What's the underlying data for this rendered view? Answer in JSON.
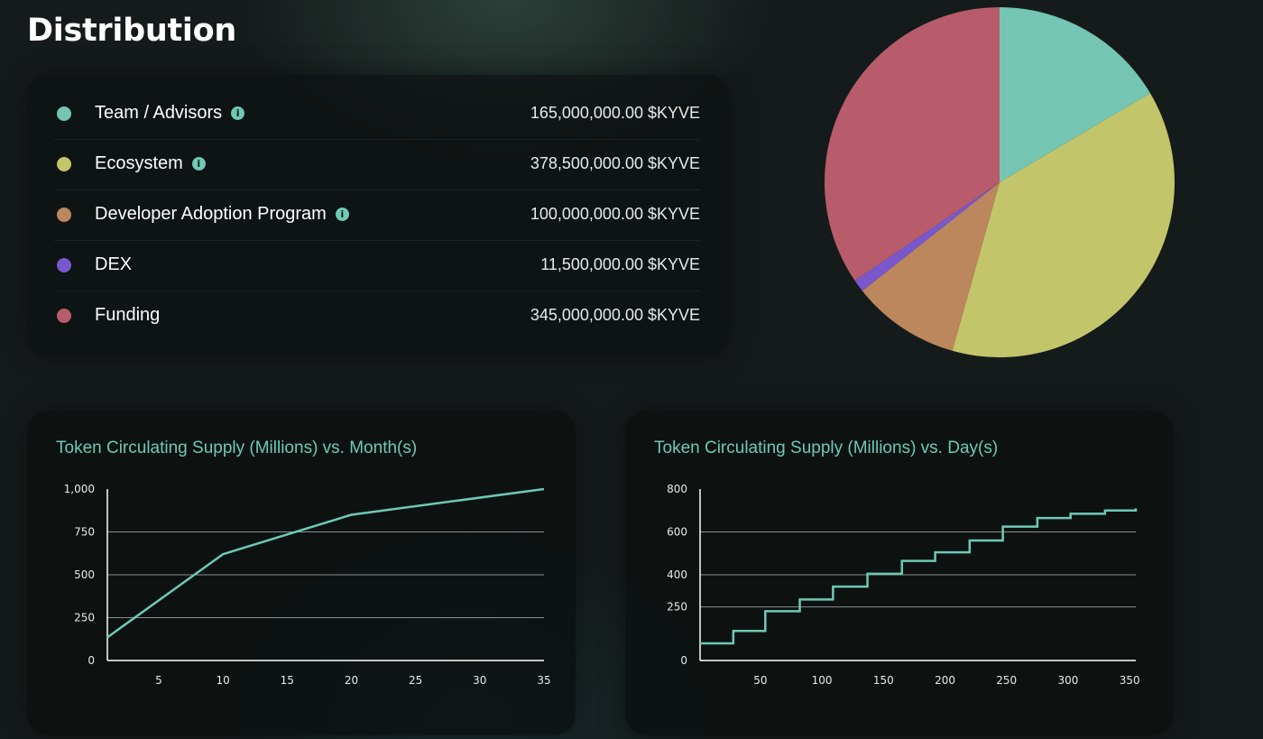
{
  "page": {
    "title": "Distribution"
  },
  "distribution": {
    "items": [
      {
        "label": "Team / Advisors",
        "amount": "165,000,000.00 $KYVE",
        "value": 165000000,
        "color": "#74c5b1",
        "info": true
      },
      {
        "label": "Ecosystem",
        "amount": "378,500,000.00 $KYVE",
        "value": 378500000,
        "color": "#c3c56a",
        "info": true
      },
      {
        "label": "Developer Adoption Program",
        "amount": "100,000,000.00 $KYVE",
        "value": 100000000,
        "color": "#bd875e",
        "info": true
      },
      {
        "label": "DEX",
        "amount": "11,500,000.00 $KYVE",
        "value": 11500000,
        "color": "#7858cc",
        "info": false
      },
      {
        "label": "Funding",
        "amount": "345,000,000.00 $KYVE",
        "value": 345000000,
        "color": "#b85c6c",
        "info": false
      }
    ],
    "info_icon_glyph": "i",
    "accent": "#6ec9b5"
  },
  "chart_data": [
    {
      "type": "pie",
      "labels": [
        "Team / Advisors",
        "Ecosystem",
        "Developer Adoption Program",
        "DEX",
        "Funding"
      ],
      "values": [
        165000000,
        378500000,
        100000000,
        11500000,
        345000000
      ],
      "colors": [
        "#74c5b1",
        "#c3c56a",
        "#bd875e",
        "#7858cc",
        "#b85c6c"
      ]
    },
    {
      "type": "line",
      "title": "Token Circulating Supply (Millions) vs. Month(s)",
      "x": [
        1,
        10,
        20,
        35
      ],
      "series": [
        {
          "values": [
            135,
            620,
            850,
            1000
          ]
        }
      ],
      "xlim": [
        1,
        35
      ],
      "ylim": [
        0,
        1000
      ],
      "xticks": [
        5,
        10,
        15,
        20,
        25,
        30,
        35
      ],
      "yticks": [
        0,
        250,
        500,
        750,
        1000
      ],
      "ytick_labels": [
        "0",
        "250",
        "500",
        "750",
        "1,000"
      ],
      "grid": "horizontal",
      "color": "#6ec9b5"
    },
    {
      "type": "line",
      "step": true,
      "title": "Token Circulating Supply (Millions) vs. Day(s)",
      "x": [
        1,
        28,
        54,
        82,
        109,
        137,
        165,
        192,
        220,
        247,
        275,
        302,
        330,
        355
      ],
      "series": [
        {
          "values": [
            80,
            138,
            230,
            285,
            345,
            405,
            465,
            505,
            560,
            625,
            665,
            685,
            700,
            710
          ]
        }
      ],
      "xlim": [
        1,
        355
      ],
      "ylim": [
        0,
        800
      ],
      "xticks": [
        50,
        100,
        150,
        200,
        250,
        300,
        350
      ],
      "yticks": [
        0,
        250,
        400,
        600,
        800
      ],
      "ytick_labels": [
        "0",
        "250",
        "400",
        "600",
        "800"
      ],
      "grid": "horizontal",
      "color": "#6ec9b5"
    }
  ]
}
